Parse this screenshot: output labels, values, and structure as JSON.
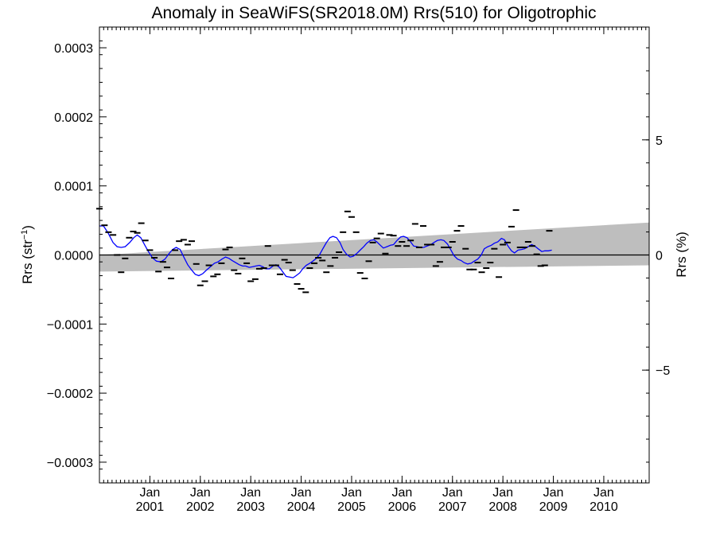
{
  "chart_data": {
    "type": "line",
    "title": "Anomaly in SeaWiFS(SR2018.0M) Rrs(510) for Oligotrophic",
    "ylabel": "Rrs (str⁻¹)",
    "ylabel_base": "Rrs (str",
    "ylabel_sup": "−1",
    "ylabel_end": ")",
    "y2label": "Rrs (%)",
    "xlim": [
      2000.0,
      2010.9
    ],
    "ylim": [
      -0.00033,
      0.00033
    ],
    "y2lim": [
      -9.9,
      9.9
    ],
    "y_ticks": [
      {
        "value": 0.0003,
        "label": "0.0003"
      },
      {
        "value": 0.0002,
        "label": "0.0002"
      },
      {
        "value": 0.0001,
        "label": "0.0001"
      },
      {
        "value": 0.0,
        "label": "0.0000"
      },
      {
        "value": -0.0001,
        "label": "−0.0001"
      },
      {
        "value": -0.0002,
        "label": "−0.0002"
      },
      {
        "value": -0.0003,
        "label": "−0.0003"
      }
    ],
    "y2_ticks": [
      {
        "value": 5,
        "label": "5"
      },
      {
        "value": 0,
        "label": "0"
      },
      {
        "value": -5,
        "label": "−5"
      }
    ],
    "x_ticks": [
      {
        "value": 2001,
        "month": "Jan",
        "year": "2001"
      },
      {
        "value": 2002,
        "month": "Jan",
        "year": "2002"
      },
      {
        "value": 2003,
        "month": "Jan",
        "year": "2003"
      },
      {
        "value": 2004,
        "month": "Jan",
        "year": "2004"
      },
      {
        "value": 2005,
        "month": "Jan",
        "year": "2005"
      },
      {
        "value": 2006,
        "month": "Jan",
        "year": "2006"
      },
      {
        "value": 2007,
        "month": "Jan",
        "year": "2007"
      },
      {
        "value": 2008,
        "month": "Jan",
        "year": "2008"
      },
      {
        "value": 2009,
        "month": "Jan",
        "year": "2009"
      },
      {
        "value": 2010,
        "month": "Jan",
        "year": "2010"
      }
    ],
    "uncertainty_band": {
      "x": [
        2000.0,
        2010.9
      ],
      "upper": [
        0.0,
        4.7e-05
      ],
      "lower": [
        -2.4e-05,
        -1.5e-05
      ]
    },
    "colors": {
      "smoothed": "#0000ff",
      "monthly": "#000000",
      "band": "#bebebe",
      "zero_line": "#000000"
    },
    "series": [
      {
        "kind": "monthly",
        "points": [
          [
            2000.0,
            6.7e-05
          ],
          [
            2000.1,
            4.3e-05
          ],
          [
            2000.18,
            3.3e-05
          ],
          [
            2000.27,
            2.9e-05
          ],
          [
            2000.35,
            0.0
          ],
          [
            2000.43,
            -2.5e-05
          ],
          [
            2000.51,
            -5e-06
          ],
          [
            2000.59,
            2.5e-05
          ],
          [
            2000.67,
            3.4e-05
          ],
          [
            2000.75,
            3.2e-05
          ],
          [
            2000.83,
            4.6e-05
          ],
          [
            2000.91,
            2.1e-05
          ],
          [
            2001.0,
            7e-06
          ],
          [
            2001.09,
            -4e-06
          ],
          [
            2001.17,
            -2.4e-05
          ],
          [
            2001.26,
            -1e-05
          ],
          [
            2001.34,
            -1.8e-05
          ],
          [
            2001.42,
            -3.4e-05
          ],
          [
            2001.5,
            7e-06
          ],
          [
            2001.58,
            2e-05
          ],
          [
            2001.67,
            2.2e-05
          ],
          [
            2001.75,
            1.5e-05
          ],
          [
            2001.83,
            2e-05
          ],
          [
            2001.92,
            -1.3e-05
          ],
          [
            2002.0,
            -4.4e-05
          ],
          [
            2002.09,
            -3.8e-05
          ],
          [
            2002.17,
            -1.5e-05
          ],
          [
            2002.26,
            -3.1e-05
          ],
          [
            2002.34,
            -2.8e-05
          ],
          [
            2002.42,
            -1.2e-05
          ],
          [
            2002.5,
            8e-06
          ],
          [
            2002.58,
            1.1e-05
          ],
          [
            2002.67,
            -2.2e-05
          ],
          [
            2002.75,
            -2.7e-05
          ],
          [
            2002.83,
            -5e-06
          ],
          [
            2002.92,
            -1.2e-05
          ],
          [
            2003.0,
            -3.8e-05
          ],
          [
            2003.09,
            -3.5e-05
          ],
          [
            2003.17,
            -2e-05
          ],
          [
            2003.26,
            -1.9e-05
          ],
          [
            2003.34,
            1.3e-05
          ],
          [
            2003.42,
            -1.5e-05
          ],
          [
            2003.5,
            -1.5e-05
          ],
          [
            2003.58,
            -2.8e-05
          ],
          [
            2003.67,
            -7e-06
          ],
          [
            2003.75,
            -1.1e-05
          ],
          [
            2003.83,
            -2.2e-05
          ],
          [
            2003.92,
            -4.2e-05
          ],
          [
            2004.0,
            -4.9e-05
          ],
          [
            2004.09,
            -5.4e-05
          ],
          [
            2004.17,
            -1.9e-05
          ],
          [
            2004.26,
            -1.2e-05
          ],
          [
            2004.34,
            -4e-06
          ],
          [
            2004.42,
            -8e-06
          ],
          [
            2004.5,
            -2.5e-05
          ],
          [
            2004.58,
            -1.6e-05
          ],
          [
            2004.67,
            -4e-06
          ],
          [
            2004.75,
            4e-06
          ],
          [
            2004.83,
            3.3e-05
          ],
          [
            2004.92,
            6.3e-05
          ],
          [
            2005.0,
            5.5e-05
          ],
          [
            2005.09,
            3.3e-05
          ],
          [
            2005.17,
            -2.6e-05
          ],
          [
            2005.26,
            -3.4e-05
          ],
          [
            2005.34,
            -9e-06
          ],
          [
            2005.42,
            1.8e-05
          ],
          [
            2005.5,
            2.4e-05
          ],
          [
            2005.58,
            3.1e-05
          ],
          [
            2005.67,
            2e-06
          ],
          [
            2005.75,
            2.9e-05
          ],
          [
            2005.83,
            2.8e-05
          ],
          [
            2005.92,
            1.3e-05
          ],
          [
            2006.0,
            1.9e-05
          ],
          [
            2006.09,
            1.3e-05
          ],
          [
            2006.17,
            2.1e-05
          ],
          [
            2006.26,
            4.5e-05
          ],
          [
            2006.34,
            1.1e-05
          ],
          [
            2006.42,
            4.2e-05
          ],
          [
            2006.5,
            1.5e-05
          ],
          [
            2006.58,
            1.5e-05
          ],
          [
            2006.67,
            -1.6e-05
          ],
          [
            2006.75,
            -1e-05
          ],
          [
            2006.83,
            1.1e-05
          ],
          [
            2006.92,
            1.1e-05
          ],
          [
            2007.0,
            1.9e-05
          ],
          [
            2007.09,
            3.5e-05
          ],
          [
            2007.17,
            4.2e-05
          ],
          [
            2007.26,
            9e-06
          ],
          [
            2007.34,
            -2.1e-05
          ],
          [
            2007.42,
            -2.1e-05
          ],
          [
            2007.5,
            -1.1e-05
          ],
          [
            2007.58,
            -2.5e-05
          ],
          [
            2007.67,
            -1.9e-05
          ],
          [
            2007.75,
            -1.1e-05
          ],
          [
            2007.83,
            9e-06
          ],
          [
            2007.92,
            -3.2e-05
          ],
          [
            2008.0,
            1.5e-05
          ],
          [
            2008.09,
            1.8e-05
          ],
          [
            2008.17,
            4.1e-05
          ],
          [
            2008.26,
            6.5e-05
          ],
          [
            2008.34,
            1.1e-05
          ],
          [
            2008.42,
            1.1e-05
          ],
          [
            2008.5,
            1.9e-05
          ],
          [
            2008.58,
            1.3e-05
          ],
          [
            2008.67,
            1e-06
          ],
          [
            2008.75,
            -1.6e-05
          ],
          [
            2008.83,
            -1.5e-05
          ],
          [
            2008.92,
            3.5e-05
          ]
        ]
      },
      {
        "kind": "smoothed",
        "points": [
          [
            2000.0,
            4.2e-05
          ],
          [
            2000.08,
            4.2e-05
          ],
          [
            2000.17,
            3.2e-05
          ],
          [
            2000.27,
            1.8e-05
          ],
          [
            2000.35,
            1.2e-05
          ],
          [
            2000.43,
            1.1e-05
          ],
          [
            2000.51,
            1.2e-05
          ],
          [
            2000.6,
            1.8e-05
          ],
          [
            2000.68,
            2.5e-05
          ],
          [
            2000.75,
            2.9e-05
          ],
          [
            2000.82,
            2.5e-05
          ],
          [
            2000.9,
            1.4e-05
          ],
          [
            2000.97,
            5e-06
          ],
          [
            2001.05,
            -4e-06
          ],
          [
            2001.13,
            -9e-06
          ],
          [
            2001.22,
            -1e-05
          ],
          [
            2001.3,
            -6e-06
          ],
          [
            2001.38,
            2e-06
          ],
          [
            2001.45,
            8e-06
          ],
          [
            2001.52,
            1.1e-05
          ],
          [
            2001.6,
            8e-06
          ],
          [
            2001.68,
            -4e-06
          ],
          [
            2001.75,
            -1.4e-05
          ],
          [
            2001.83,
            -2.2e-05
          ],
          [
            2001.9,
            -2.8e-05
          ],
          [
            2001.97,
            -3e-05
          ],
          [
            2002.05,
            -2.7e-05
          ],
          [
            2002.12,
            -2.2e-05
          ],
          [
            2002.2,
            -1.7e-05
          ],
          [
            2002.28,
            -1.2e-05
          ],
          [
            2002.35,
            -1e-05
          ],
          [
            2002.43,
            -6e-06
          ],
          [
            2002.5,
            -3e-06
          ],
          [
            2002.57,
            -5e-06
          ],
          [
            2002.63,
            -8e-06
          ],
          [
            2002.7,
            -1.1e-05
          ],
          [
            2002.77,
            -1.4e-05
          ],
          [
            2002.84,
            -1.6e-05
          ],
          [
            2002.9,
            -1.6e-05
          ],
          [
            2002.97,
            -1.8e-05
          ],
          [
            2003.04,
            -1.7e-05
          ],
          [
            2003.1,
            -1.6e-05
          ],
          [
            2003.17,
            -1.5e-05
          ],
          [
            2003.24,
            -1.7e-05
          ],
          [
            2003.3,
            -2e-05
          ],
          [
            2003.37,
            -2e-05
          ],
          [
            2003.44,
            -1.6e-05
          ],
          [
            2003.5,
            -1.4e-05
          ],
          [
            2003.57,
            -1.8e-05
          ],
          [
            2003.64,
            -2.5e-05
          ],
          [
            2003.7,
            -3.1e-05
          ],
          [
            2003.77,
            -3.2e-05
          ],
          [
            2003.84,
            -3.3e-05
          ],
          [
            2003.9,
            -3e-05
          ],
          [
            2003.97,
            -2.6e-05
          ],
          [
            2004.03,
            -2e-05
          ],
          [
            2004.1,
            -1.5e-05
          ],
          [
            2004.17,
            -1.2e-05
          ],
          [
            2004.23,
            -9e-06
          ],
          [
            2004.3,
            -5e-06
          ],
          [
            2004.37,
            1e-06
          ],
          [
            2004.43,
            9e-06
          ],
          [
            2004.5,
            1.8e-05
          ],
          [
            2004.57,
            2.5e-05
          ],
          [
            2004.63,
            2.7e-05
          ],
          [
            2004.7,
            2.5e-05
          ],
          [
            2004.77,
            1.8e-05
          ],
          [
            2004.83,
            8e-06
          ],
          [
            2004.9,
            1e-06
          ],
          [
            2004.97,
            -3e-06
          ],
          [
            2005.03,
            -2e-06
          ],
          [
            2005.1,
            2e-06
          ],
          [
            2005.17,
            7e-06
          ],
          [
            2005.24,
            1.2e-05
          ],
          [
            2005.3,
            1.7e-05
          ],
          [
            2005.37,
            2.1e-05
          ],
          [
            2005.44,
            2.2e-05
          ],
          [
            2005.5,
            1.9e-05
          ],
          [
            2005.57,
            1.4e-05
          ],
          [
            2005.63,
            1e-05
          ],
          [
            2005.7,
            1.2e-05
          ],
          [
            2005.77,
            1.4e-05
          ],
          [
            2005.83,
            1.5e-05
          ],
          [
            2005.9,
            2.1e-05
          ],
          [
            2005.97,
            2.6e-05
          ],
          [
            2006.03,
            2.7e-05
          ],
          [
            2006.1,
            2.5e-05
          ],
          [
            2006.17,
            1.9e-05
          ],
          [
            2006.23,
            1.3e-05
          ],
          [
            2006.3,
            1.2e-05
          ],
          [
            2006.37,
            1.1e-05
          ],
          [
            2006.43,
            1.1e-05
          ],
          [
            2006.5,
            1.3e-05
          ],
          [
            2006.57,
            1.5e-05
          ],
          [
            2006.63,
            1.8e-05
          ],
          [
            2006.7,
            2.1e-05
          ],
          [
            2006.77,
            2.2e-05
          ],
          [
            2006.83,
            2.1e-05
          ],
          [
            2006.9,
            1.6e-05
          ],
          [
            2006.97,
            7e-06
          ],
          [
            2007.03,
            -1e-06
          ],
          [
            2007.1,
            -6e-06
          ],
          [
            2007.17,
            -8e-06
          ],
          [
            2007.23,
            -1.1e-05
          ],
          [
            2007.3,
            -1.3e-05
          ],
          [
            2007.37,
            -1.2e-05
          ],
          [
            2007.43,
            -9e-06
          ],
          [
            2007.5,
            -6e-06
          ],
          [
            2007.57,
            0.0
          ],
          [
            2007.63,
            9e-06
          ],
          [
            2007.7,
            1.2e-05
          ],
          [
            2007.77,
            1.4e-05
          ],
          [
            2007.83,
            1.7e-05
          ],
          [
            2007.9,
            1.9e-05
          ],
          [
            2007.97,
            2.4e-05
          ],
          [
            2008.03,
            2.2e-05
          ],
          [
            2008.1,
            1.3e-05
          ],
          [
            2008.17,
            6e-06
          ],
          [
            2008.23,
            3e-06
          ],
          [
            2008.3,
            7e-06
          ],
          [
            2008.37,
            8e-06
          ],
          [
            2008.43,
            9e-06
          ],
          [
            2008.5,
            1.2e-05
          ],
          [
            2008.57,
            1.5e-05
          ],
          [
            2008.63,
            1.3e-05
          ],
          [
            2008.7,
            9e-06
          ],
          [
            2008.77,
            5e-06
          ],
          [
            2008.83,
            6e-06
          ],
          [
            2008.9,
            6e-06
          ],
          [
            2008.97,
            7e-06
          ]
        ]
      }
    ],
    "grid": false,
    "legend": "none"
  }
}
